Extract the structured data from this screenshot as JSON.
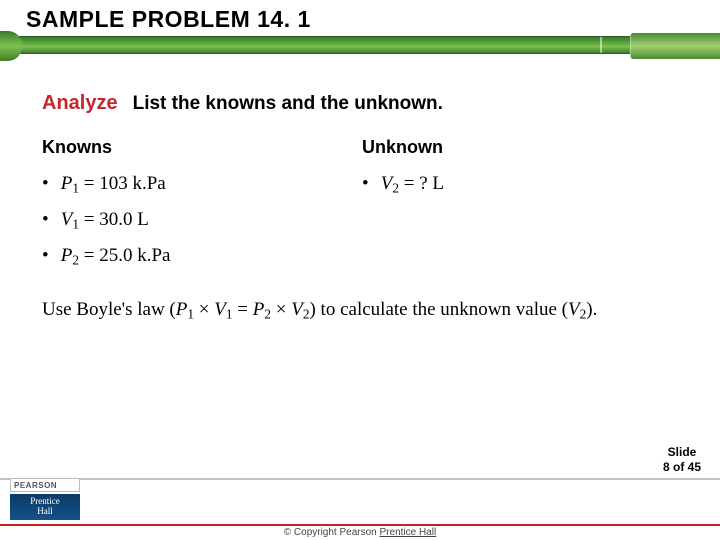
{
  "header": {
    "title": "SAMPLE PROBLEM 14. 1"
  },
  "colors": {
    "analyze_red": "#c9252c",
    "green_band_top": "#3a7a2a",
    "green_band_mid": "#7bc24f",
    "footer_rule": "#c2c2c2",
    "footer_redline": "#b22222"
  },
  "analyze": {
    "keyword": "Analyze",
    "instruction": "List the knowns and the unknown."
  },
  "knowns": {
    "heading": "Knowns",
    "items": [
      {
        "var": "P",
        "sub": "1",
        "rhs": "103 k.Pa"
      },
      {
        "var": "V",
        "sub": "1",
        "rhs": "30.0 L"
      },
      {
        "var": "P",
        "sub": "2",
        "rhs": "25.0 k.Pa"
      }
    ]
  },
  "unknown": {
    "heading": "Unknown",
    "items": [
      {
        "var": "V",
        "sub": "2",
        "rhs": "? L"
      }
    ]
  },
  "paragraph": {
    "pre": "Use Boyle's law (",
    "eq_l_var": "P",
    "eq_l_sub": "1",
    "eq_times": " × ",
    "eq_l2_var": "V",
    "eq_l2_sub": "1",
    "eq_eq": " = ",
    "eq_r_var": "P",
    "eq_r_sub": "2",
    "eq_r2_var": "V",
    "eq_r2_sub": "2",
    "mid": ") to calculate the unknown value (",
    "ans_var": "V",
    "ans_sub": "2",
    "post": ")."
  },
  "footer": {
    "slide_label": "Slide",
    "slide_pos": "8 of 45",
    "copyright_pre": "© Copyright Pearson ",
    "copyright_link": "Prentice Hall",
    "logo_top": "PEARSON",
    "logo_line1": "Prentice",
    "logo_line2": "Hall"
  }
}
